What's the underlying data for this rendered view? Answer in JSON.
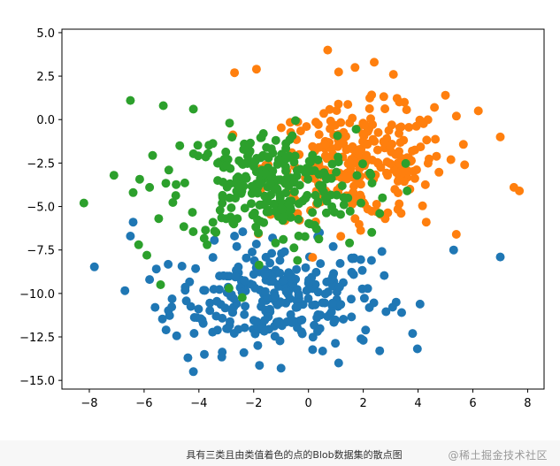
{
  "chart_data": {
    "type": "scatter",
    "title": "",
    "xlabel": "",
    "ylabel": "",
    "xlim": [
      -9.0,
      8.6
    ],
    "ylim": [
      -15.5,
      5.2
    ],
    "xticks": [
      -8,
      -6,
      -4,
      -2,
      0,
      2,
      4,
      6,
      8
    ],
    "yticks": [
      5.0,
      2.5,
      0.0,
      -2.5,
      -5.0,
      -7.5,
      -10.0,
      -12.5,
      -15.0
    ],
    "xtick_labels": [
      "−8",
      "−6",
      "−4",
      "−2",
      "0",
      "2",
      "4",
      "6",
      "8"
    ],
    "ytick_labels": [
      "5.0",
      "2.5",
      "0.0",
      "−2.5",
      "−5.0",
      "−7.5",
      "−10.0",
      "−12.5",
      "−15.0"
    ],
    "grid": false,
    "series": [
      {
        "color": "#1f77b4",
        "center": [
          -1.2,
          -10.2
        ],
        "spread": [
          1.9,
          1.5
        ],
        "count": 260,
        "points": [
          [
            -6.4,
            -5.9
          ],
          [
            -6.5,
            -6.7
          ],
          [
            -5.8,
            -9.2
          ],
          [
            -5.6,
            -10.8
          ],
          [
            -5.2,
            -12.1
          ],
          [
            -4.4,
            -13.7
          ],
          [
            -4.2,
            -14.5
          ],
          [
            -3.8,
            -13.5
          ],
          [
            -1.0,
            -14.3
          ],
          [
            1.1,
            -14.0
          ],
          [
            2.6,
            -13.3
          ],
          [
            3.8,
            -12.3
          ],
          [
            5.3,
            -7.5
          ],
          [
            7.0,
            -7.9
          ],
          [
            -2.7,
            -6.7
          ],
          [
            -2.0,
            -8.9
          ],
          [
            0.4,
            -6.5
          ],
          [
            0.9,
            -7.3
          ],
          [
            2.3,
            -8.1
          ],
          [
            3.2,
            -10.5
          ],
          [
            3.4,
            -11.1
          ],
          [
            2.0,
            -12.7
          ]
        ]
      },
      {
        "color": "#ff7f0e",
        "center": [
          1.8,
          -2.5
        ],
        "spread": [
          1.6,
          1.6
        ],
        "count": 260,
        "points": [
          [
            0.7,
            4.0
          ],
          [
            -2.7,
            2.7
          ],
          [
            -1.9,
            2.9
          ],
          [
            1.7,
            3.0
          ],
          [
            2.4,
            3.3
          ],
          [
            3.1,
            2.6
          ],
          [
            3.5,
            1.0
          ],
          [
            4.6,
            0.7
          ],
          [
            5.0,
            1.4
          ],
          [
            5.4,
            0.2
          ],
          [
            6.2,
            0.5
          ],
          [
            7.0,
            -1.0
          ],
          [
            5.2,
            -2.3
          ],
          [
            5.7,
            -2.6
          ],
          [
            7.5,
            -3.9
          ],
          [
            7.7,
            -4.1
          ],
          [
            4.3,
            -5.9
          ],
          [
            3.7,
            -4.0
          ],
          [
            2.8,
            -5.7
          ],
          [
            1.7,
            -5.7
          ]
        ]
      },
      {
        "color": "#2ca02c",
        "center": [
          -1.5,
          -3.8
        ],
        "spread": [
          1.6,
          1.6
        ],
        "count": 260,
        "points": [
          [
            -8.2,
            -4.8
          ],
          [
            -6.5,
            1.1
          ],
          [
            -5.3,
            0.8
          ],
          [
            -4.2,
            0.6
          ],
          [
            -7.1,
            -3.2
          ],
          [
            -6.4,
            -4.2
          ],
          [
            -5.8,
            -3.9
          ],
          [
            -5.1,
            -2.9
          ],
          [
            -4.7,
            -1.5
          ],
          [
            -5.9,
            -7.8
          ],
          [
            -6.2,
            -7.2
          ],
          [
            -5.4,
            -9.5
          ],
          [
            -3.7,
            -7.2
          ],
          [
            -2.9,
            -9.7
          ],
          [
            -0.4,
            -8.1
          ],
          [
            1.5,
            -7.1
          ],
          [
            3.6,
            -4.1
          ],
          [
            2.7,
            -4.5
          ],
          [
            2.6,
            -5.4
          ],
          [
            -1.2,
            -7.1
          ]
        ]
      }
    ]
  },
  "caption": {
    "text": "具有三类且由类值着色的点的Blob数据集的散点图",
    "watermark": "@稀土掘金技术社区"
  }
}
